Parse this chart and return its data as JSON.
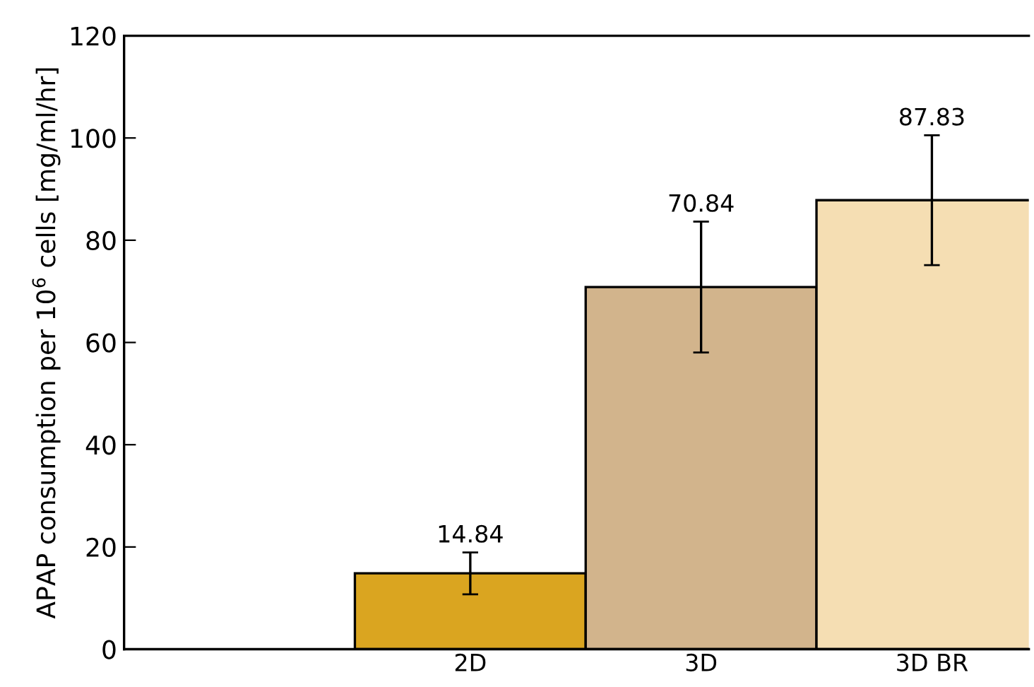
{
  "chart_data": {
    "type": "bar",
    "ylabel": "APAP consumption per 10$^{6}$ cells [mg/ml/hr]",
    "categories": [
      "2D",
      "3D",
      "3D BR"
    ],
    "values": [
      14.84,
      70.84,
      87.83
    ],
    "colors": [
      "#daa520",
      "#d2b48c",
      "#f5deb3"
    ],
    "errors": [
      4.1,
      12.8,
      12.7
    ],
    "data_labels": true,
    "ylim": [
      0,
      120
    ],
    "yticks": [
      0,
      20,
      40,
      60,
      80,
      100,
      120
    ],
    "grid": false
  }
}
